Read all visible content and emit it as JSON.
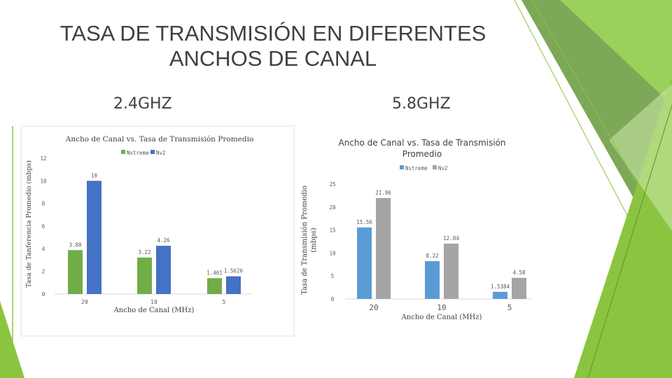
{
  "slide": {
    "title_line1": "TASA DE TRANSMISIÓN EN DIFERENTES",
    "title_line2": "ANCHOS DE CANAL",
    "label_left": "2.4GHZ",
    "label_right": "5.8GHZ"
  },
  "colors": {
    "title_text": "#404040",
    "accent_green": "#8BC53F",
    "dark_green": "#5F8E3A"
  },
  "chart_data": [
    {
      "type": "bar",
      "title": "Ancho de Canal vs. Tasa de Transmisión Promedio",
      "xlabel": "Ancho de Canal (MHz)",
      "ylabel": "Tasa de Tanferencia Promedio (mbps)",
      "categories": [
        "20",
        "10",
        "5"
      ],
      "series": [
        {
          "name": "Nstreme",
          "values": [
            3.88,
            3.22,
            1.401
          ],
          "labels": [
            "3.88",
            "3.22",
            "1.401"
          ],
          "color": "#70AD47"
        },
        {
          "name": "Nv2",
          "values": [
            10,
            4.26,
            1.5626
          ],
          "labels": [
            "10",
            "4.26",
            "1.5626"
          ],
          "color": "#4472C4"
        }
      ],
      "ylim": [
        0,
        12
      ],
      "yticks": [
        "0",
        "2",
        "4",
        "6",
        "8",
        "10",
        "12"
      ],
      "grid": false,
      "legend": "top"
    },
    {
      "type": "bar",
      "title_line1": "Ancho de Canal vs. Tasa de Transmisión",
      "title_line2": "Promedio",
      "xlabel": "Ancho de Canal (MHz)",
      "ylabel_line1": "Tasa de Transmisión Promedio",
      "ylabel_line2": "(mbps)",
      "categories": [
        "20",
        "10",
        "5"
      ],
      "series": [
        {
          "name": "Nstreme",
          "values": [
            15.56,
            8.22,
            1.5384
          ],
          "labels": [
            "15.56",
            "8.22",
            "1.5384"
          ],
          "color": "#5B9BD5"
        },
        {
          "name": "Nv2",
          "values": [
            21.96,
            12.04,
            4.58
          ],
          "labels": [
            "21.96",
            "12.04",
            "4.58"
          ],
          "color": "#A5A5A5"
        }
      ],
      "ylim": [
        0,
        25
      ],
      "yticks": [
        "0",
        "5",
        "10",
        "15",
        "20",
        "25"
      ],
      "grid": false,
      "legend": "top-right"
    }
  ]
}
